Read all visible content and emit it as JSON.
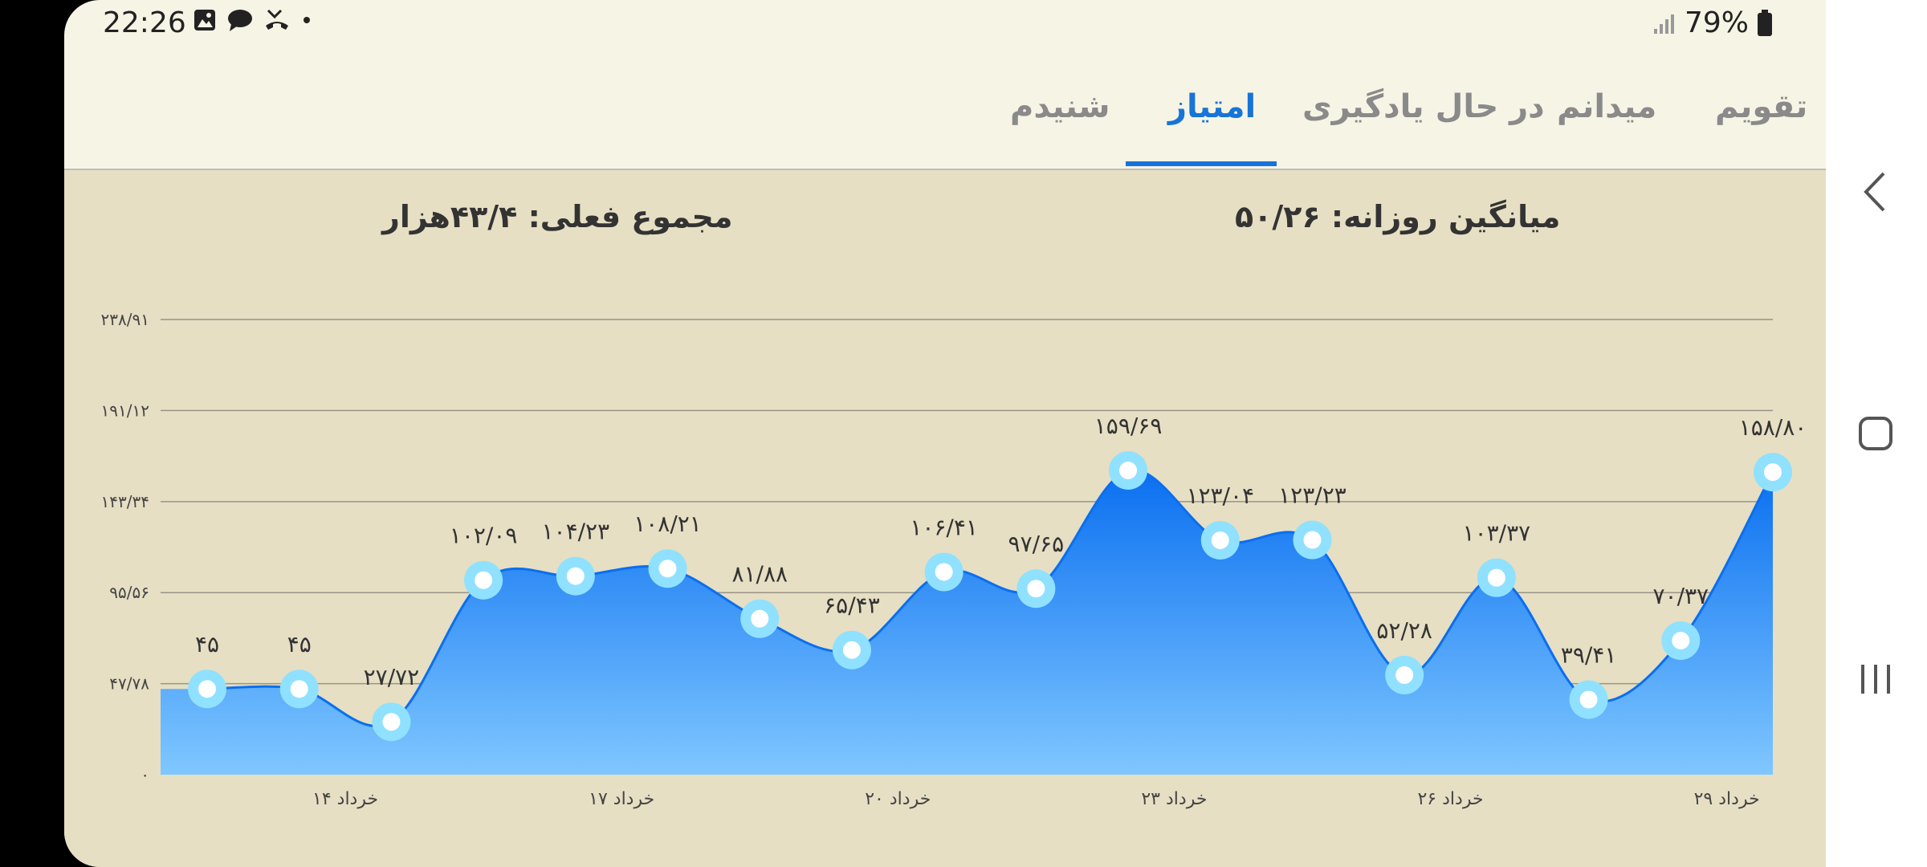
{
  "status_bar": {
    "time": "22:26",
    "battery": "79%"
  },
  "tabs": [
    {
      "label": "تقویم",
      "active": false
    },
    {
      "label": "میدانم",
      "active": false
    },
    {
      "label": "در حال یادگیری",
      "active": false
    },
    {
      "label": "امتیاز",
      "active": true
    },
    {
      "label": "شنیدم",
      "active": false
    }
  ],
  "stats": {
    "daily_average": "میانگین روزانه: ۵۰/۲۶",
    "current_total": "مجموع فعلی: ۴۳/۴هزار"
  },
  "chart_data": {
    "type": "area",
    "title": "",
    "xlabel": "",
    "ylabel": "",
    "ylim": [
      0,
      238.91
    ],
    "y_ticks": [
      0,
      47.78,
      95.56,
      143.34,
      191.12,
      238.91
    ],
    "y_tick_labels": [
      "۰",
      "۴۷/۷۸",
      "۹۵/۵۶",
      "۱۴۳/۳۴",
      "۱۹۱/۱۲",
      "۲۳۸/۹۱"
    ],
    "x_tick_labels": [
      {
        "index": 1.5,
        "label": "۱۴ خرداد"
      },
      {
        "index": 4.5,
        "label": "۱۷ خرداد"
      },
      {
        "index": 7.5,
        "label": "۲۰ خرداد"
      },
      {
        "index": 10.5,
        "label": "۲۳ خرداد"
      },
      {
        "index": 13.5,
        "label": "۲۶ خرداد"
      },
      {
        "index": 16.5,
        "label": "۲۹ خرداد"
      }
    ],
    "values": [
      45,
      45,
      27.72,
      102.09,
      104.23,
      108.21,
      81.88,
      65.43,
      106.41,
      97.65,
      159.69,
      123.04,
      123.23,
      52.28,
      103.37,
      39.41,
      70.37,
      158.8
    ],
    "value_labels": [
      "۴۵",
      "۴۵",
      "۲۷/۷۲",
      "۱۰۲/۰۹",
      "۱۰۴/۲۳",
      "۱۰۸/۲۱",
      "۸۱/۸۸",
      "۶۵/۴۳",
      "۱۰۶/۴۱",
      "۹۷/۶۵",
      "۱۵۹/۶۹",
      "۱۲۳/۰۴",
      "۱۲۳/۲۳",
      "۵۲/۲۸",
      "۱۰۳/۳۷",
      "۳۹/۴۱",
      "۷۰/۳۷",
      "۱۵۸/۸۰"
    ],
    "grid": true,
    "legend": "none",
    "colors": {
      "fill_top": "#0a6ff0",
      "fill_bottom": "#7fc7ff",
      "marker_outer": "#8fe1ff",
      "marker_inner": "#ffffff"
    }
  }
}
